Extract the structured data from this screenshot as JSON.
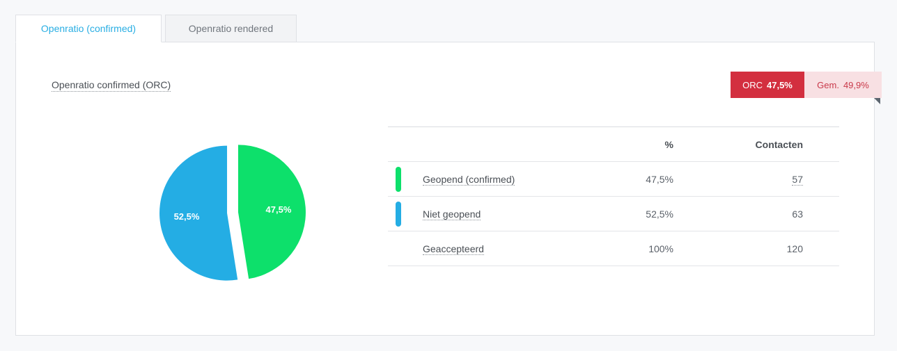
{
  "tabs": [
    {
      "label": "Openratio (confirmed)",
      "active": true
    },
    {
      "label": "Openratio rendered",
      "active": false
    }
  ],
  "section": {
    "title": "Openratio confirmed (ORC)"
  },
  "badge": {
    "orc_label": "ORC",
    "orc_value": "47,5%",
    "avg_label": "Gem.",
    "avg_value": "49,9%"
  },
  "colors": {
    "opened": "#0de06b",
    "not_opened": "#24ade4",
    "accent": "#29aee3",
    "badge_red": "#d32f3f"
  },
  "chart_data": {
    "type": "pie",
    "slices": [
      {
        "label": "Geopend (confirmed)",
        "value": 47.5,
        "display": "47,5%",
        "color": "#0de06b"
      },
      {
        "label": "Niet geopend",
        "value": 52.5,
        "display": "52,5%",
        "color": "#24ade4"
      }
    ]
  },
  "table": {
    "headers": {
      "pct": "%",
      "count": "Contacten"
    },
    "rows": [
      {
        "label": "Geopend (confirmed)",
        "pct": "47,5%",
        "count": "57",
        "color": "#0de06b"
      },
      {
        "label": "Niet geopend",
        "pct": "52,5%",
        "count": "63",
        "color": "#24ade4"
      },
      {
        "label": "Geaccepteerd",
        "pct": "100%",
        "count": "120",
        "color": ""
      }
    ]
  }
}
